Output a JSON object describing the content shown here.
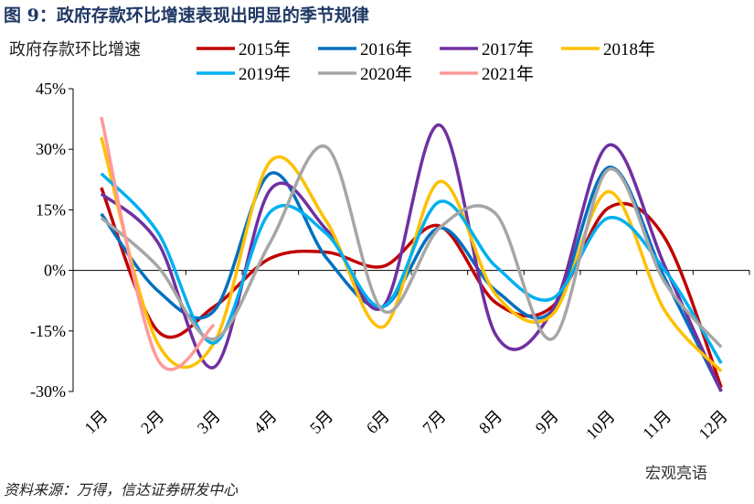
{
  "chart_data": {
    "type": "line",
    "title": "图 9：政府存款环比增速表现出明显的季节规律",
    "y_label": "政府存款环比增速",
    "source": "资料来源：万得，信达证券研发中心",
    "watermark": "宏观亮语",
    "categories": [
      "1月",
      "2月",
      "3月",
      "4月",
      "5月",
      "6月",
      "7月",
      "8月",
      "9月",
      "10月",
      "11月",
      "12月"
    ],
    "ylim": [
      -30,
      45
    ],
    "yticks": [
      {
        "value": -30,
        "label": "-30%"
      },
      {
        "value": -15,
        "label": "-15%"
      },
      {
        "value": 0,
        "label": "0%"
      },
      {
        "value": 15,
        "label": "15%"
      },
      {
        "value": 30,
        "label": "30%"
      },
      {
        "value": 45,
        "label": "45%"
      }
    ],
    "series": [
      {
        "name": "2015年",
        "color": "#c00000",
        "values": [
          20.5,
          -15,
          -9,
          3,
          4.5,
          1,
          11,
          -8,
          -9,
          15.5,
          8,
          -29
        ]
      },
      {
        "name": "2016年",
        "color": "#0070c0",
        "values": [
          14,
          -5,
          -10,
          24,
          3,
          -9,
          10.5,
          -5,
          -10,
          25.5,
          -2,
          -30
        ]
      },
      {
        "name": "2017年",
        "color": "#7030a0",
        "values": [
          19,
          7,
          -24,
          20,
          10,
          -9,
          36,
          -16,
          -10,
          31,
          1,
          -30
        ]
      },
      {
        "name": "2018年",
        "color": "#ffc000",
        "values": [
          33,
          -18,
          -18,
          27,
          12,
          -14,
          22,
          -6,
          -11,
          19.5,
          -10,
          -25
        ]
      },
      {
        "name": "2019年",
        "color": "#00b0f0",
        "values": [
          24,
          9.5,
          -18,
          14.5,
          9,
          -9,
          17,
          1,
          -7,
          13,
          0,
          -23
        ]
      },
      {
        "name": "2020年",
        "color": "#a6a6a6",
        "values": [
          13,
          1,
          -17,
          7,
          30.5,
          -10,
          10.5,
          14,
          -17,
          25,
          -3,
          -19
        ]
      },
      {
        "name": "2021年",
        "color": "#ff9999",
        "values": [
          38,
          -22,
          -13.5,
          null,
          null,
          null,
          null,
          null,
          null,
          null,
          null,
          null
        ]
      }
    ]
  }
}
